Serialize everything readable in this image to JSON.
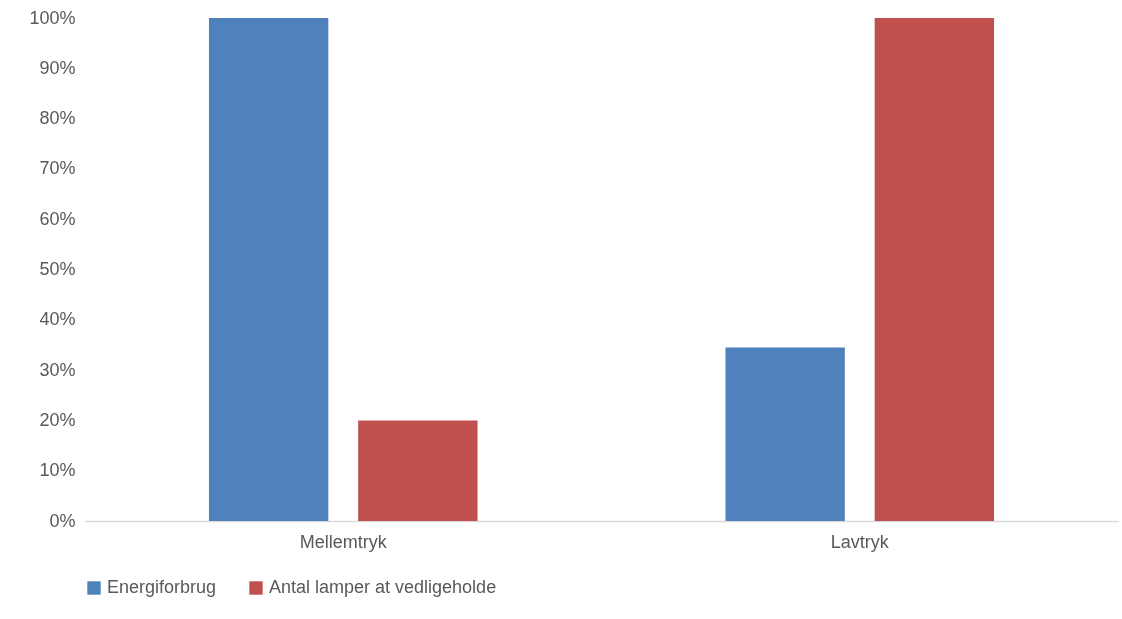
{
  "chart_data": {
    "type": "bar",
    "categories": [
      "Mellemtryk",
      "Lavtryk"
    ],
    "series": [
      {
        "name": "Energiforbrug",
        "color": "#4f81bd",
        "values": [
          100,
          34.5
        ]
      },
      {
        "name": "Antal lamper at vedligeholde",
        "color": "#c0504d",
        "values": [
          20,
          100
        ]
      }
    ],
    "ylim": [
      0,
      100
    ],
    "yticks": [
      {
        "value": 0,
        "label": "0%"
      },
      {
        "value": 10,
        "label": "10%"
      },
      {
        "value": 20,
        "label": "20%"
      },
      {
        "value": 30,
        "label": "30%"
      },
      {
        "value": 40,
        "label": "40%"
      },
      {
        "value": 50,
        "label": "50%"
      },
      {
        "value": 60,
        "label": "60%"
      },
      {
        "value": 70,
        "label": "70%"
      },
      {
        "value": 80,
        "label": "80%"
      },
      {
        "value": 90,
        "label": "90%"
      },
      {
        "value": 100,
        "label": "100%"
      }
    ],
    "grid": false,
    "legend": "bottom"
  }
}
